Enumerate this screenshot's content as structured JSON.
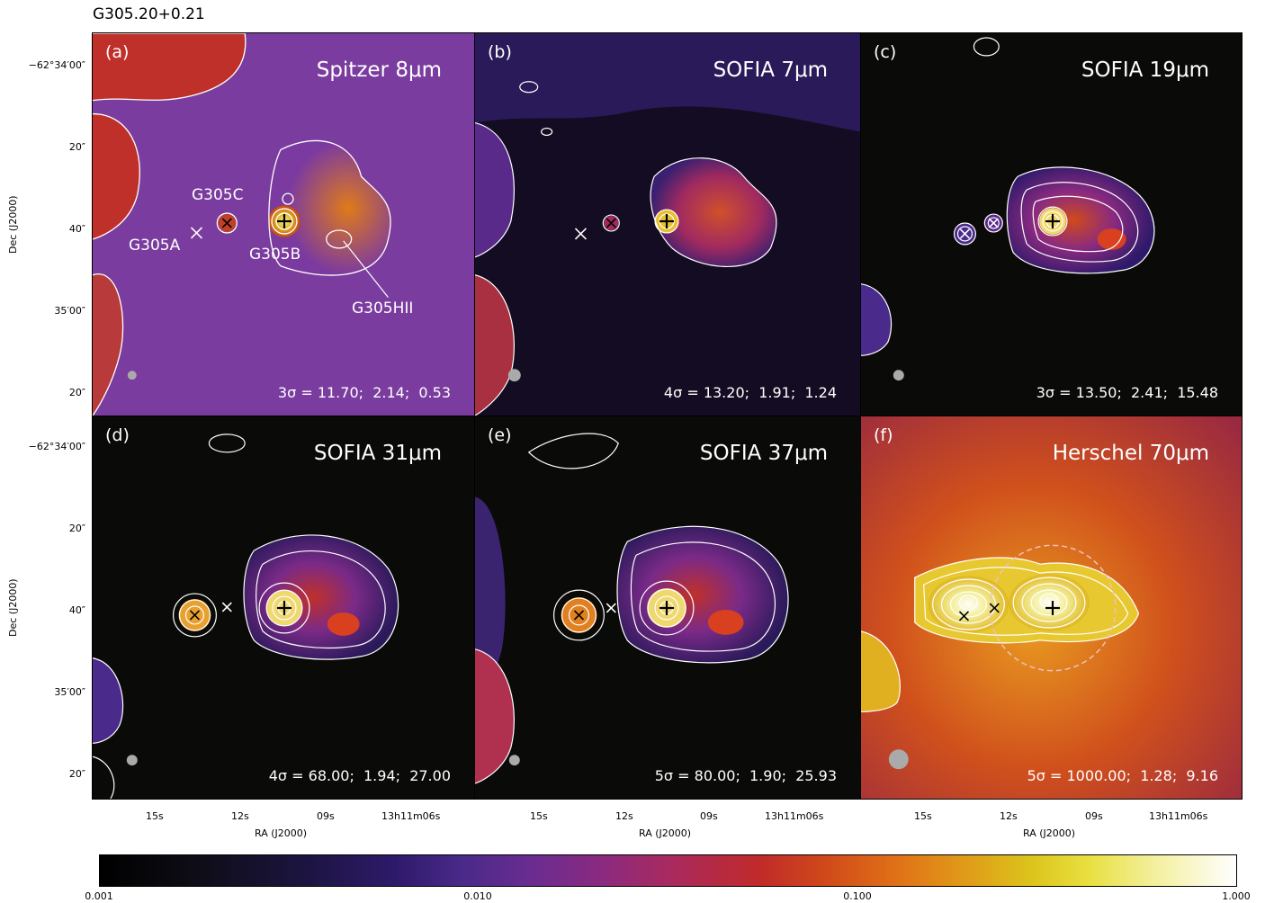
{
  "figure_title": "G305.20+0.21",
  "panels": [
    {
      "id": "a",
      "label": "(a)",
      "title": "Spitzer 8μm",
      "sigma": "3σ = 11.70;  2.14;  0.53",
      "bg": "#7b3aa0"
    },
    {
      "id": "b",
      "label": "(b)",
      "title": "SOFIA 7μm",
      "sigma": "4σ = 13.20;  1.91;  1.24",
      "bg": "#150d20"
    },
    {
      "id": "c",
      "label": "(c)",
      "title": "SOFIA 19μm",
      "sigma": "3σ = 13.50;  2.41;  15.48",
      "bg": "#0a0a08"
    },
    {
      "id": "d",
      "label": "(d)",
      "title": "SOFIA 31μm",
      "sigma": "4σ = 68.00;  1.94;  27.00",
      "bg": "#0a0a08"
    },
    {
      "id": "e",
      "label": "(e)",
      "title": "SOFIA 37μm",
      "sigma": "5σ = 80.00;  1.90;  25.93",
      "bg": "#0a0a08"
    },
    {
      "id": "f",
      "label": "(f)",
      "title": "Herschel 70μm",
      "sigma": "5σ = 1000.00;  1.28;  9.16",
      "bg": "#d0461c"
    }
  ],
  "sources": {
    "g305a": "G305A",
    "g305b": "G305B",
    "g305c": "G305C",
    "g305hii": "G305HII"
  },
  "axes": {
    "ylabel": "Dec (J2000)",
    "xlabel": "RA (J2000)",
    "yticks": [
      "−62°34′00″",
      "20″",
      "40″",
      "35′00″",
      "20″"
    ],
    "xticks": [
      "15s",
      "12s",
      "09s",
      "13h11m06s"
    ]
  },
  "colorbar": {
    "ticks": [
      "0.001",
      "0.010",
      "0.100",
      "1.000"
    ],
    "scale": "log",
    "range": [
      0.001,
      1.0
    ]
  }
}
